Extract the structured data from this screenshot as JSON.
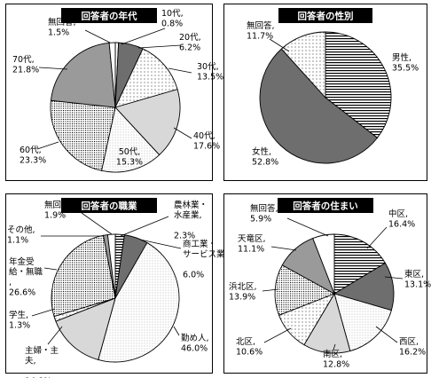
{
  "chart_data": [
    {
      "type": "pie",
      "title": "回答者の年代",
      "slices": [
        {
          "label": "10代,",
          "pct": "0.8%",
          "value": 0.8,
          "pattern": "white"
        },
        {
          "label": "20代,",
          "pct": "6.2%",
          "value": 6.2,
          "pattern": "darkgray"
        },
        {
          "label": "30代,",
          "pct": "13.5%",
          "value": 13.5,
          "pattern": "dots"
        },
        {
          "label": "40代,",
          "pct": "17.6%",
          "value": 17.6,
          "pattern": "lightgray"
        },
        {
          "label": "50代,",
          "pct": "15.3%",
          "value": 15.3,
          "pattern": "finedots"
        },
        {
          "label": "60代,",
          "pct": "23.3%",
          "value": 23.3,
          "pattern": "densedots"
        },
        {
          "label": "70代,",
          "pct": "21.8%",
          "value": 21.8,
          "pattern": "gray"
        },
        {
          "label": "無回答,",
          "pct": "1.5%",
          "value": 1.5,
          "pattern": "white"
        }
      ]
    },
    {
      "type": "pie",
      "title": "回答者の性別",
      "slices": [
        {
          "label": "男性,",
          "pct": "35.5%",
          "value": 35.5,
          "pattern": "hstripes"
        },
        {
          "label": "女性,",
          "pct": "52.8%",
          "value": 52.8,
          "pattern": "darkgray"
        },
        {
          "label": "無回答,",
          "pct": "11.7%",
          "value": 11.7,
          "pattern": "dots"
        }
      ]
    },
    {
      "type": "pie",
      "title": "回答者の職業",
      "slices": [
        {
          "label": "農林業・水産業,",
          "pct": "2.3%",
          "value": 2.3,
          "pattern": "hstripes"
        },
        {
          "label": "商工業・サービス業,",
          "pct": "6.0%",
          "value": 6.0,
          "pattern": "darkgray"
        },
        {
          "label": "勤め人,",
          "pct": "46.0%",
          "value": 46.0,
          "pattern": "finedots"
        },
        {
          "label": "主婦・主夫,",
          "pct": "14.8%",
          "value": 14.8,
          "pattern": "lightgray"
        },
        {
          "label": "学生,",
          "pct": "1.3%",
          "value": 1.3,
          "pattern": "dots"
        },
        {
          "label": "年金受給・無職,",
          "pct": "26.6%",
          "value": 26.6,
          "pattern": "densedots"
        },
        {
          "label": "その他,",
          "pct": "1.1%",
          "value": 1.1,
          "pattern": "gray"
        },
        {
          "label": "無回答,",
          "pct": "1.9%",
          "value": 1.9,
          "pattern": "white"
        }
      ]
    },
    {
      "type": "pie",
      "title": "回答者の住まい",
      "slices": [
        {
          "label": "中区,",
          "pct": "16.4%",
          "value": 16.4,
          "pattern": "hstripes"
        },
        {
          "label": "東区,",
          "pct": "13.1%",
          "value": 13.1,
          "pattern": "darkgray"
        },
        {
          "label": "西区,",
          "pct": "16.2%",
          "value": 16.2,
          "pattern": "finedots"
        },
        {
          "label": "南区,",
          "pct": "12.8%",
          "value": 12.8,
          "pattern": "lightgray"
        },
        {
          "label": "北区,",
          "pct": "10.6%",
          "value": 10.6,
          "pattern": "dots"
        },
        {
          "label": "浜北区,",
          "pct": "13.9%",
          "value": 13.9,
          "pattern": "densedots"
        },
        {
          "label": "天竜区,",
          "pct": "11.1%",
          "value": 11.1,
          "pattern": "gray"
        },
        {
          "label": "無回答,",
          "pct": "5.9%",
          "value": 5.9,
          "pattern": "white"
        }
      ]
    }
  ]
}
